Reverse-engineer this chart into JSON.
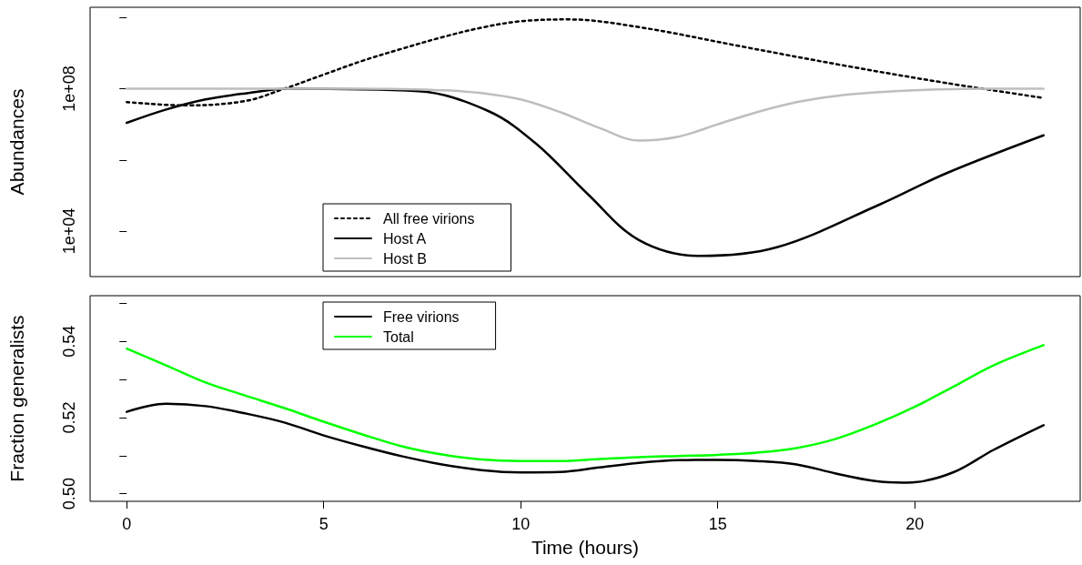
{
  "chart_data": [
    {
      "type": "line",
      "ylabel": "Abundances",
      "log": "y",
      "grid": false,
      "legend": "bottom",
      "marker": "none",
      "tick_labels": "y",
      "xlim": [
        -0.93,
        24.2
      ],
      "ylim": [
        525,
        19500000000.0
      ],
      "yticks": [
        {
          "value": 10000.0,
          "label": "1e+04"
        },
        {
          "value": 1000000.0,
          "label": null
        },
        {
          "value": 100000000.0,
          "label": "1e+08"
        },
        {
          "value": 10000000000.0,
          "label": null
        }
      ],
      "series": [
        {
          "name": "All free virions",
          "color": "#000000",
          "line_style": "dotted",
          "x": [
            0,
            1.5,
            3,
            4,
            5,
            6,
            7,
            8,
            9,
            10,
            11.2,
            13,
            15.6,
            18.2,
            20.8,
            23.27
          ],
          "values": [
            42000000.0,
            34000000.0,
            45000000.0,
            100000000.0,
            250000000.0,
            620000000.0,
            1350000000.0,
            2800000000.0,
            5200000000.0,
            7900000000.0,
            8900000000.0,
            5400000000.0,
            1550000000.0,
            450000000.0,
            145000000.0,
            55000000.0
          ]
        },
        {
          "name": "Host A",
          "color": "#000000",
          "line_style": "solid",
          "x": [
            0,
            1,
            2,
            3,
            4.1,
            7.4,
            9.2,
            10.4,
            11.7,
            13,
            14.55,
            16.5,
            19.1,
            20.8,
            23.27
          ],
          "values": [
            11000000.0,
            26000000.0,
            50000000.0,
            74000000.0,
            100000000.0,
            85000000.0,
            23000000.0,
            2800000.0,
            110000.0,
            5600.0,
            2000.0,
            3500.0,
            55000.0,
            420000.0,
            4900000.0
          ]
        },
        {
          "name": "Host B",
          "color": "#bebebe",
          "line_style": "solid",
          "x": [
            0,
            2,
            4,
            6,
            7,
            8,
            9,
            10,
            11,
            12,
            13,
            14,
            15,
            16,
            17,
            18,
            19,
            20,
            21,
            22,
            23.27
          ],
          "values": [
            100000000.0,
            100000000.0,
            100000000.0,
            100000000.0,
            98000000.0,
            91000000.0,
            76000000.0,
            50000000.0,
            22000000.0,
            7900000.0,
            3500000.0,
            4500000.0,
            10000000.0,
            22000000.0,
            42000000.0,
            63000000.0,
            79000000.0,
            91000000.0,
            98000000.0,
            100000000.0,
            100000000.0
          ]
        }
      ]
    },
    {
      "type": "line",
      "ylabel": "Fraction generalists",
      "xlabel": "Time (hours)",
      "grid": false,
      "legend": "top",
      "marker": "none",
      "xlim": [
        -0.93,
        24.2
      ],
      "xticks": [
        0,
        5,
        10,
        15,
        20
      ],
      "ylim": [
        0.498,
        0.552
      ],
      "yticks": [
        {
          "value": 0.5,
          "label": "0.50"
        },
        {
          "value": 0.51,
          "label": null
        },
        {
          "value": 0.52,
          "label": "0.52"
        },
        {
          "value": 0.53,
          "label": null
        },
        {
          "value": 0.54,
          "label": "0.54"
        },
        {
          "value": 0.55,
          "label": null
        }
      ],
      "series": [
        {
          "name": "Free virions",
          "color": "#000000",
          "line_style": "solid",
          "x": [
            0,
            1,
            2,
            3,
            4,
            5,
            6,
            7,
            8,
            9,
            10,
            11,
            12,
            13,
            14,
            15,
            16,
            17,
            18,
            19,
            19.7,
            20,
            21,
            22,
            23.27
          ],
          "values": [
            0.5215,
            0.5236,
            0.523,
            0.5211,
            0.5187,
            0.5153,
            0.5124,
            0.5098,
            0.5077,
            0.5062,
            0.5056,
            0.5057,
            0.5069,
            0.5081,
            0.5088,
            0.5089,
            0.5086,
            0.5077,
            0.5053,
            0.5033,
            0.5029,
            0.503,
            0.5057,
            0.5115,
            0.518
          ]
        },
        {
          "name": "Total",
          "color": "#00ff00",
          "line_style": "solid",
          "x": [
            0,
            1,
            2,
            3,
            4,
            5,
            6,
            7,
            8,
            9,
            10,
            11,
            12,
            13,
            14,
            15,
            16,
            17,
            18,
            19,
            20,
            21,
            22,
            23.27
          ],
          "values": [
            0.5381,
            0.5337,
            0.5292,
            0.5258,
            0.5225,
            0.5189,
            0.5155,
            0.5124,
            0.5103,
            0.509,
            0.5086,
            0.5086,
            0.5091,
            0.5096,
            0.5099,
            0.5102,
            0.5108,
            0.512,
            0.5144,
            0.5182,
            0.5228,
            0.5282,
            0.5337,
            0.539
          ]
        }
      ]
    }
  ]
}
